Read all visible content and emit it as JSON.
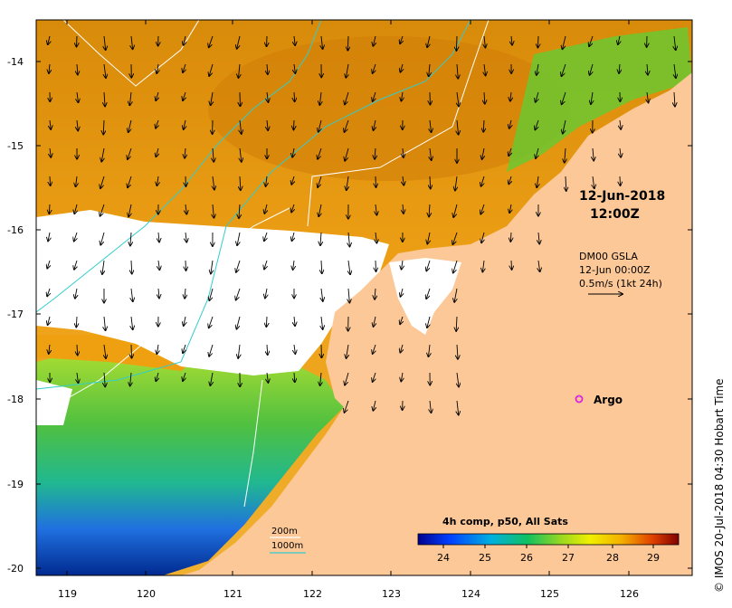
{
  "map": {
    "lat_ticks": [
      "-14",
      "-15",
      "-16",
      "-17",
      "-18",
      "-19",
      "-20"
    ],
    "lon_ticks": [
      "119",
      "120",
      "121",
      "122",
      "123",
      "124",
      "125",
      "126"
    ],
    "timestamp_date": "12-Jun-2018",
    "timestamp_time": "12:00Z",
    "current": {
      "line1": "DM00 GSLA",
      "line2": "12-Jun 00:00Z",
      "line3": "0.5m/s (1kt 24h)"
    },
    "argo_label": "Argo",
    "contours": {
      "c200": "200m",
      "c1000": "1000m",
      "color_200": "#ffffff",
      "color_1000": "#33cccc"
    },
    "colorbar": {
      "title": "4h comp, p50, All Sats",
      "ticks": [
        "24",
        "25",
        "26",
        "27",
        "28",
        "29"
      ]
    },
    "credit": "© IMOS 20-Jul-2018 04:30 Hobart Time",
    "colors": {
      "land": "#fcc898",
      "warm": "#e6960a",
      "cloud": "#ffffff",
      "argo": "#e020e0"
    }
  }
}
